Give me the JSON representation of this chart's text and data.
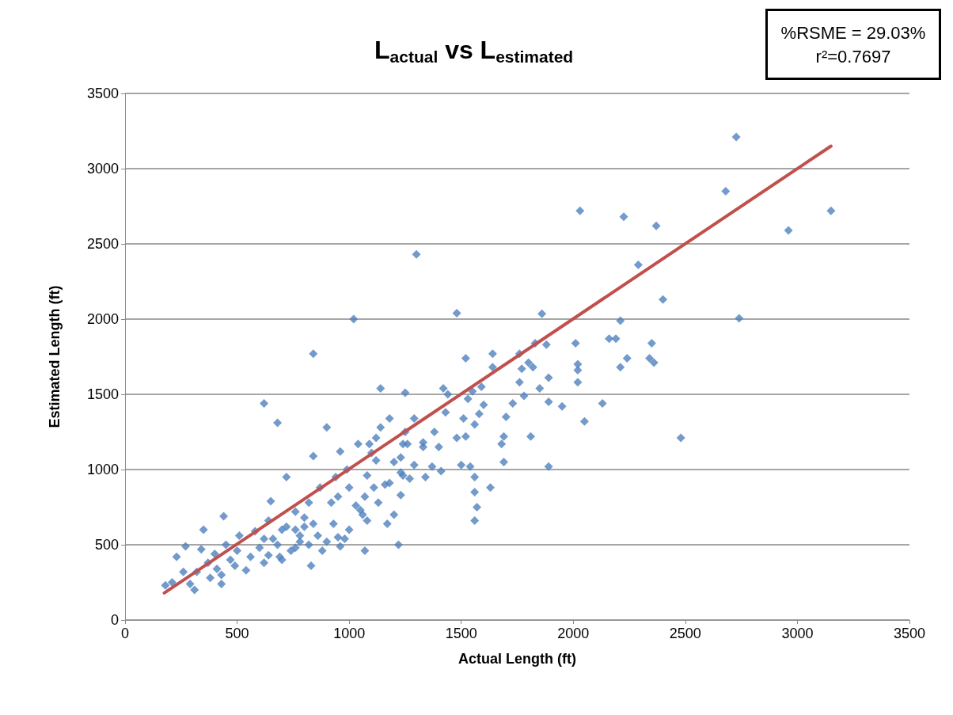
{
  "chart_data": {
    "type": "scatter",
    "title": "L$_{actual}$ vs L$_{estimated}$",
    "xlabel": "Actual Length (ft)",
    "ylabel": "Estimated Length (ft)",
    "annotations": [
      "%RSME = 29.03%",
      "r²=0.7697"
    ],
    "xlim": [
      0,
      3500
    ],
    "xticks": [
      0,
      500,
      1000,
      1500,
      2000,
      2500,
      3000,
      3500
    ],
    "ylim": [
      0,
      3500
    ],
    "yticks": [
      0,
      500,
      1000,
      1500,
      2000,
      2500,
      3000,
      3500
    ],
    "grid": "y",
    "marker": "diamond",
    "series": [
      {
        "color": "#4f81bd",
        "x": [
          2727,
          2680,
          3150,
          2960,
          2030,
          2225,
          2370,
          2290,
          2400,
          2740,
          2480,
          1300,
          1020,
          1480,
          1860,
          840,
          620,
          680,
          900,
          2350,
          2340,
          2360,
          2210,
          2160,
          2190,
          2240,
          2210,
          2130,
          2010,
          2020,
          2020,
          2020,
          2050,
          1950,
          1890,
          1890,
          1880,
          1850,
          1820,
          1830,
          1800,
          1810,
          1890,
          1760,
          1770,
          1760,
          1780,
          1730,
          1700,
          1690,
          1680,
          1690,
          1640,
          1640,
          1630,
          1590,
          1600,
          1580,
          1560,
          1550,
          1520,
          1530,
          1510,
          1520,
          1540,
          1560,
          1560,
          1570,
          1560,
          1500,
          1480,
          1440,
          1430,
          1420,
          1400,
          1380,
          1370,
          1410,
          1340,
          1330,
          1290,
          1290,
          1270,
          1250,
          1250,
          1240,
          1230,
          1230,
          1220,
          1230,
          1200,
          1180,
          1180,
          1170,
          1200,
          1140,
          1140,
          1120,
          1120,
          1110,
          1090,
          1080,
          1070,
          1070,
          1060,
          1040,
          1030,
          1000,
          990,
          960,
          950,
          940,
          930,
          950,
          960,
          920,
          870,
          840,
          820,
          830,
          800,
          780,
          760,
          720,
          700,
          680,
          650,
          640,
          640,
          620,
          620,
          600,
          580,
          560,
          540,
          510,
          500,
          490,
          470,
          450,
          440,
          430,
          430,
          410,
          400,
          380,
          370,
          350,
          340,
          320,
          310,
          290,
          270,
          260,
          230,
          210,
          180,
          720,
          760,
          800,
          840,
          860,
          900,
          980,
          1000,
          1050,
          1100,
          1160,
          1130,
          1080,
          760,
          740,
          700,
          880,
          660,
          690,
          780,
          820,
          1240,
          1260,
          1330
        ],
        "values": [
          3210,
          2850,
          2720,
          2590,
          2720,
          2680,
          2620,
          2360,
          2130,
          2005,
          1210,
          2430,
          2000,
          2040,
          2035,
          1770,
          1440,
          1310,
          1280,
          1840,
          1740,
          1710,
          1990,
          1870,
          1870,
          1740,
          1680,
          1440,
          1840,
          1700,
          1660,
          1580,
          1320,
          1420,
          1610,
          1450,
          1830,
          1540,
          1680,
          1840,
          1710,
          1220,
          1020,
          1770,
          1670,
          1580,
          1490,
          1440,
          1350,
          1220,
          1170,
          1050,
          1770,
          1680,
          880,
          1550,
          1430,
          1370,
          1300,
          1520,
          1740,
          1470,
          1340,
          1220,
          1020,
          950,
          850,
          750,
          660,
          1030,
          1210,
          1500,
          1380,
          1540,
          1150,
          1250,
          1020,
          990,
          950,
          1150,
          1340,
          1030,
          940,
          1510,
          1250,
          1170,
          1080,
          830,
          500,
          980,
          1050,
          1340,
          910,
          640,
          700,
          1540,
          1280,
          1210,
          1060,
          880,
          1170,
          960,
          820,
          460,
          700,
          1170,
          760,
          880,
          1000,
          1120,
          820,
          950,
          640,
          550,
          490,
          780,
          880,
          1090,
          780,
          360,
          620,
          560,
          480,
          950,
          600,
          500,
          790,
          660,
          430,
          540,
          380,
          480,
          590,
          420,
          330,
          560,
          460,
          360,
          400,
          500,
          690,
          300,
          240,
          340,
          440,
          280,
          380,
          600,
          470,
          320,
          200,
          240,
          490,
          320,
          420,
          250,
          230,
          620,
          720,
          680,
          640,
          560,
          520,
          540,
          600,
          730,
          1110,
          900,
          780,
          660,
          600,
          460,
          400,
          460,
          540,
          420,
          520,
          500,
          960,
          1170,
          1180
        ]
      },
      {
        "type": "line",
        "color": "#c0504d",
        "marker": "none",
        "x": [
          175,
          3150
        ],
        "values": [
          180,
          3150
        ]
      }
    ]
  }
}
